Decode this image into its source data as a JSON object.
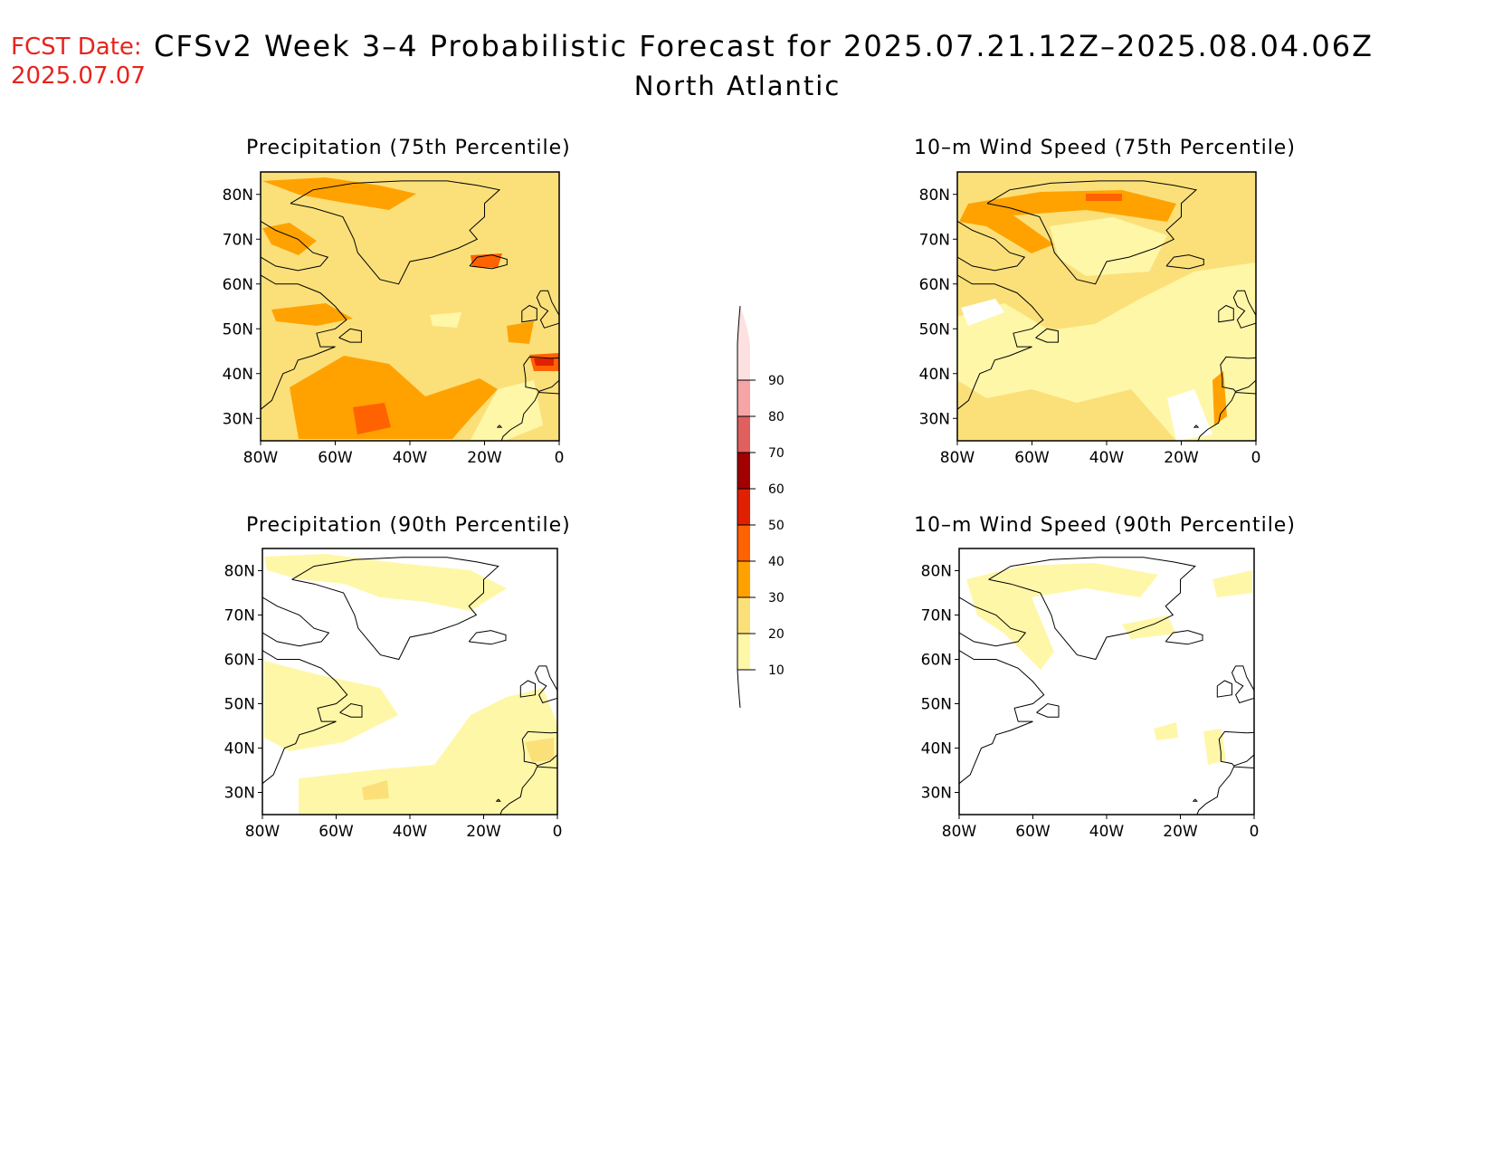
{
  "header": {
    "fcst_label": "FCST Date:",
    "fcst_date": "2025.07.07",
    "title": "CFSv2 Week 3–4 Probabilistic Forecast for 2025.07.21.12Z–2025.08.04.06Z",
    "region": "North Atlantic"
  },
  "panels": [
    {
      "title": "Precipitation (75th Percentile)"
    },
    {
      "title": "10–m Wind Speed (75th Percentile)"
    },
    {
      "title": "Precipitation (90th Percentile)"
    },
    {
      "title": "10–m Wind Speed (90th Percentile)"
    }
  ],
  "axes": {
    "lat_labels": [
      "80N",
      "70N",
      "60N",
      "50N",
      "40N",
      "30N"
    ],
    "lat_values": [
      80,
      70,
      60,
      50,
      40,
      30
    ],
    "lon_labels": [
      "80W",
      "60W",
      "40W",
      "20W",
      "0"
    ],
    "lon_values": [
      -80,
      -60,
      -40,
      -20,
      0
    ],
    "lat_range": [
      25,
      85
    ],
    "lon_range": [
      -80,
      0
    ]
  },
  "colorbar": {
    "levels": [
      "10",
      "20",
      "30",
      "40",
      "50",
      "60",
      "70",
      "80",
      "90"
    ],
    "colors": [
      "#fff7a8",
      "#fbe07a",
      "#ffa200",
      "#ff6200",
      "#e12002",
      "#a20000",
      "#e06060",
      "#f5a5a5",
      "#fde1e1"
    ]
  }
}
